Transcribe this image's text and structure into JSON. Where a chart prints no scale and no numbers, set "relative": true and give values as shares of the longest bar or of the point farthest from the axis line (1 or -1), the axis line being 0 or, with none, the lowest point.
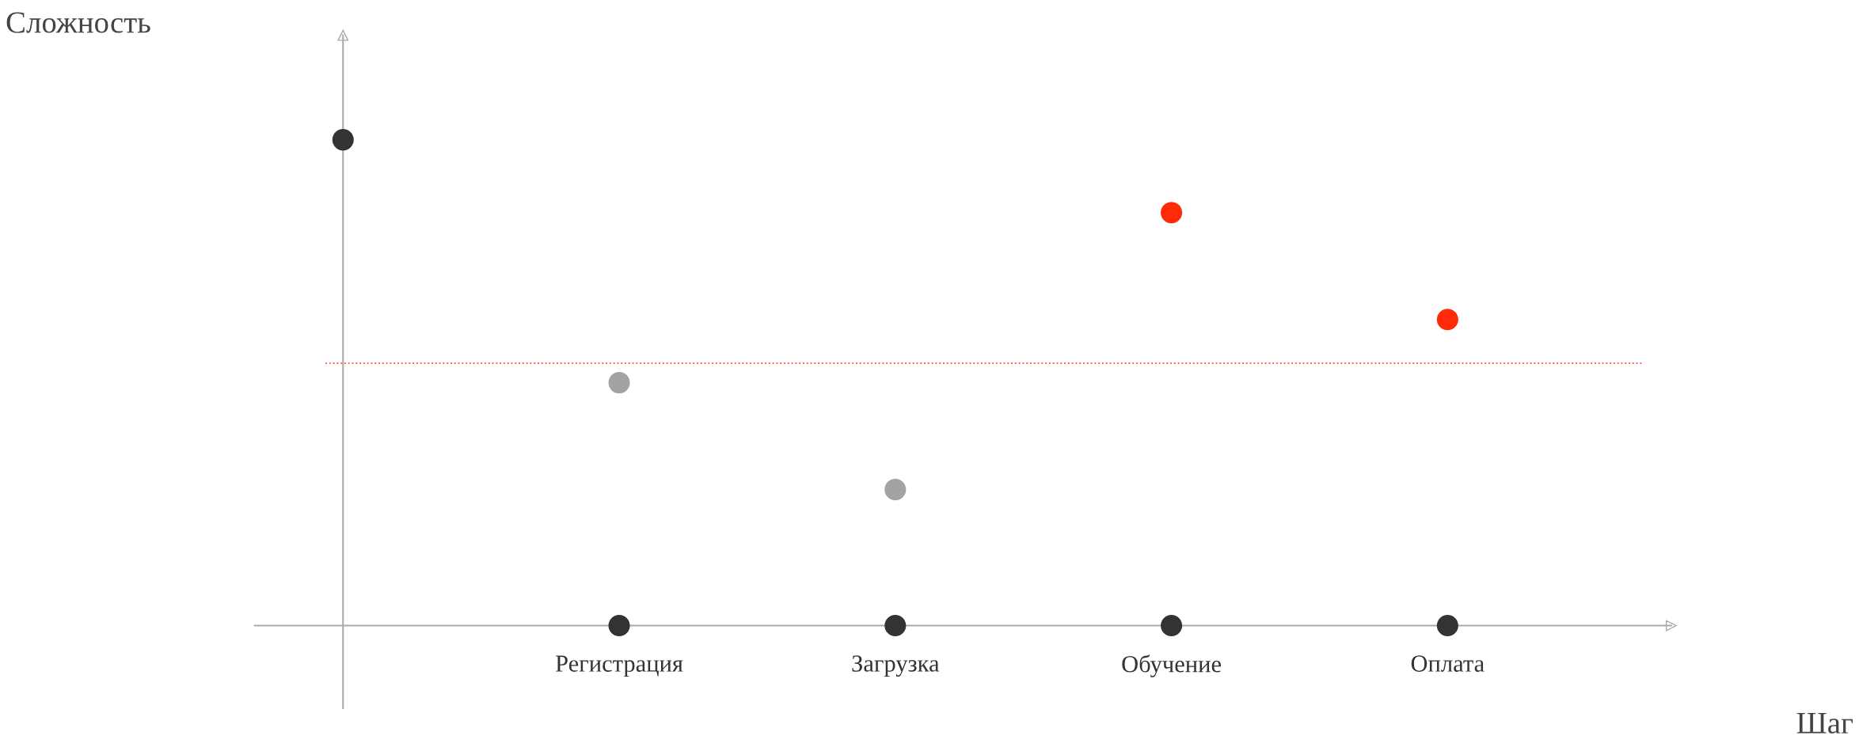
{
  "chart_data": {
    "type": "scatter",
    "relative": true,
    "annotations": [
      "Сложность",
      "Шаг"
    ],
    "categories": [
      null,
      "Регистрация",
      "Загрузка",
      "Обучение",
      "Оплата"
    ],
    "series": [
      {
        "values": [
          1,
          0.5,
          0.28,
          0.85,
          0.63
        ],
        "colors": [
          "#333333",
          "#a3a3a3",
          "#a3a3a3",
          "#ff2a0a",
          "#ff2a0a"
        ]
      },
      {
        "values": [
          null,
          0,
          0,
          0,
          0
        ],
        "color": "#333333"
      }
    ],
    "ref_lines": [
      {
        "axis": "y",
        "value": 0.54,
        "color": "#ff5a4a",
        "line_style": "dotted"
      }
    ],
    "marker": "circle"
  }
}
